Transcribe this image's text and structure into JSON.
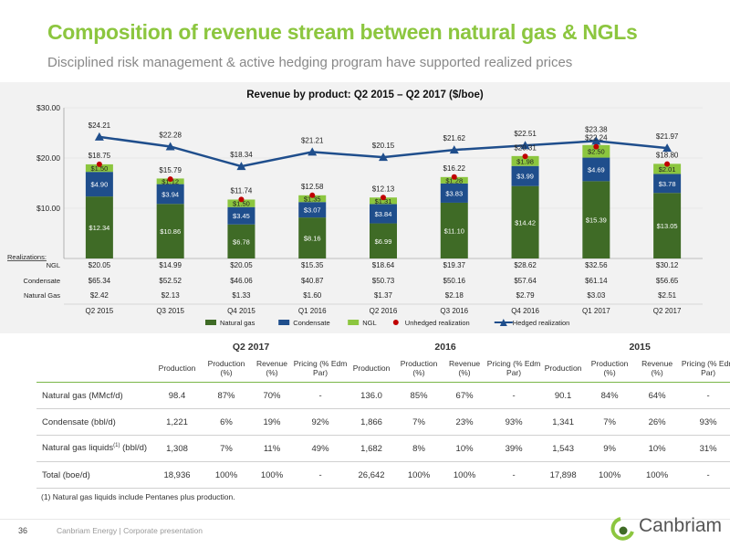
{
  "title": "Composition of revenue stream between natural gas & NGLs",
  "subtitle": "Disciplined risk management & active hedging program have supported realized prices",
  "chart_data": {
    "type": "bar",
    "title": "Revenue by product: Q2 2015 – Q2 2017 ($/boe)",
    "categories": [
      "Q2 2015",
      "Q3 2015",
      "Q4 2015",
      "Q1 2016",
      "Q2 2016",
      "Q3 2016",
      "Q4 2016",
      "Q1 2017",
      "Q2 2017"
    ],
    "ylim": [
      0,
      30
    ],
    "yticks": [
      "$10.00",
      "$20.00",
      "$30.00"
    ],
    "series": [
      {
        "name": "Natural gas",
        "kind": "bar",
        "color": "#3f6b26",
        "values": [
          12.34,
          10.86,
          6.78,
          8.16,
          6.99,
          11.1,
          14.42,
          15.39,
          13.05
        ],
        "labels": [
          "$12.34",
          "$10.86",
          "$6.78",
          "$8.16",
          "$6.99",
          "$11.10",
          "$14.42",
          "$15.39",
          "$13.05"
        ]
      },
      {
        "name": "Condensate",
        "kind": "bar",
        "color": "#1f4e8c",
        "values": [
          4.9,
          3.94,
          3.45,
          3.07,
          3.84,
          3.83,
          3.99,
          4.69,
          3.78
        ],
        "labels": [
          "$4.90",
          "$3.94",
          "$3.45",
          "$3.07",
          "$3.84",
          "$3.83",
          "$3.99",
          "$4.69",
          "$3.78"
        ]
      },
      {
        "name": "NGL",
        "kind": "bar",
        "color": "#8cc63f",
        "values": [
          1.5,
          1.12,
          1.5,
          1.35,
          1.31,
          1.28,
          1.98,
          2.5,
          2.01
        ],
        "labels": [
          "$1.50",
          "$1.12",
          "$1.50",
          "$1.35",
          "$1.31",
          "$1.28",
          "$1.98",
          "$2.50",
          "$2.01"
        ]
      },
      {
        "name": "Unhedged realization",
        "kind": "dot",
        "color": "#c00000",
        "values": [
          18.75,
          15.79,
          11.74,
          12.58,
          12.13,
          16.22,
          20.31,
          22.24,
          18.8
        ],
        "labels": [
          "$18.75",
          "$15.79",
          "$11.74",
          "$12.58",
          "$12.13",
          "$16.22",
          "$20.31",
          "$22.24",
          "$18.80"
        ]
      },
      {
        "name": "Hedged realization",
        "kind": "line",
        "color": "#1f4e8c",
        "values": [
          24.21,
          22.28,
          18.34,
          21.21,
          20.15,
          21.62,
          22.51,
          23.38,
          21.97
        ],
        "labels": [
          "$24.21",
          "$22.28",
          "$18.34",
          "$21.21",
          "$20.15",
          "$21.62",
          "$22.51",
          "$23.38",
          "$21.97"
        ]
      }
    ],
    "realizations": {
      "heading": "Realizations:",
      "rows": [
        {
          "label": "NGL",
          "values": [
            "$20.05",
            "$14.99",
            "$20.05",
            "$15.35",
            "$18.64",
            "$19.37",
            "$28.62",
            "$32.56",
            "$30.12"
          ]
        },
        {
          "label": "Condensate",
          "values": [
            "$65.34",
            "$52.52",
            "$46.06",
            "$40.87",
            "$50.73",
            "$50.16",
            "$57.64",
            "$61.14",
            "$56.65"
          ]
        },
        {
          "label": "Natural Gas",
          "values": [
            "$2.42",
            "$2.13",
            "$1.33",
            "$1.60",
            "$1.37",
            "$2.18",
            "$2.79",
            "$3.03",
            "$2.51"
          ]
        }
      ]
    },
    "legend_position": "bottom"
  },
  "table": {
    "groups": [
      "Q2 2017",
      "2016",
      "2015"
    ],
    "subheaders": [
      "Production",
      "Production (%)",
      "Revenue (%)",
      "Pricing (% Edm Par)"
    ],
    "rows": [
      {
        "label": "Natural gas (MMcf/d)",
        "cells": [
          "98.4",
          "87%",
          "70%",
          "-",
          "136.0",
          "85%",
          "67%",
          "-",
          "90.1",
          "84%",
          "64%",
          "-"
        ]
      },
      {
        "label": "Condensate (bbl/d)",
        "cells": [
          "1,221",
          "6%",
          "19%",
          "92%",
          "1,866",
          "7%",
          "23%",
          "93%",
          "1,341",
          "7%",
          "26%",
          "93%"
        ]
      },
      {
        "label_pre": "Natural gas liquids",
        "label_sup": "(1)",
        "label_post": " (bbl/d)",
        "cells": [
          "1,308",
          "7%",
          "11%",
          "49%",
          "1,682",
          "8%",
          "10%",
          "39%",
          "1,543",
          "9%",
          "10%",
          "31%"
        ]
      },
      {
        "label": "Total (boe/d)",
        "cells": [
          "18,936",
          "100%",
          "100%",
          "-",
          "26,642",
          "100%",
          "100%",
          "-",
          "17,898",
          "100%",
          "100%",
          "-"
        ]
      }
    ]
  },
  "footnote": "(1)    Natural gas liquids include Pentanes plus production.",
  "footer": {
    "page_number": "36",
    "text": "Canbriam Energy  |  Corporate presentation",
    "logo_text": "Canbriam"
  }
}
